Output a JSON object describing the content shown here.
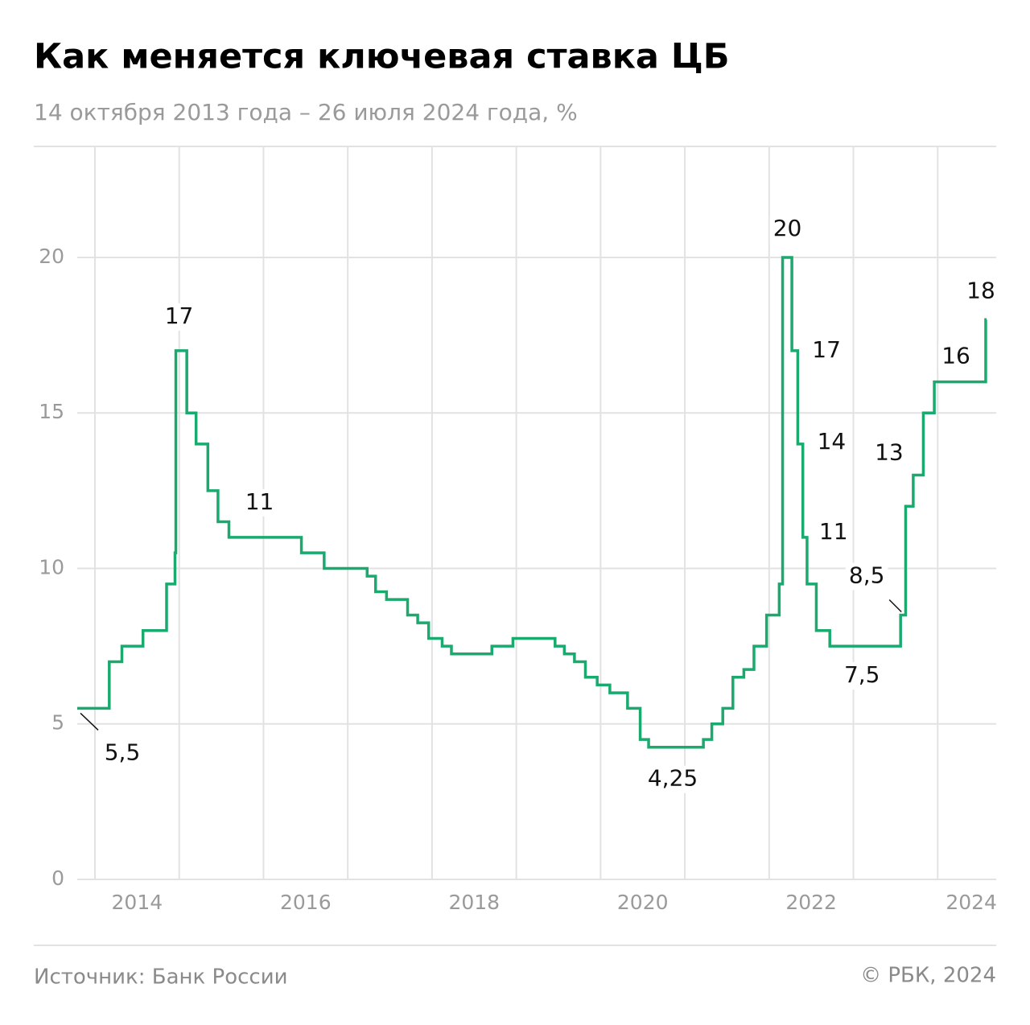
{
  "chart_data": {
    "type": "step-line",
    "title": "Как меняется ключевая ставка ЦБ",
    "subtitle": "14 октября 2013 года – 26 июля 2024 года, %",
    "source": "Источник: Банк России",
    "credit": "© РБК, 2024",
    "xlim": [
      2013.79,
      2024.58
    ],
    "ylim": [
      0,
      23.57
    ],
    "yticks": [
      0,
      5,
      10,
      15,
      20
    ],
    "xticks": [
      {
        "value": 2014.5,
        "label": "2014"
      },
      {
        "value": 2016.5,
        "label": "2016"
      },
      {
        "value": 2018.5,
        "label": "2018"
      },
      {
        "value": 2020.5,
        "label": "2020"
      },
      {
        "value": 2022.5,
        "label": "2022"
      },
      {
        "value": 2024.4,
        "label": "2024"
      }
    ],
    "xgrid": [
      2014,
      2015,
      2016,
      2017,
      2018,
      2019,
      2020,
      2021,
      2022,
      2023,
      2024
    ],
    "grid": true,
    "x": [
      2013.79,
      2014.17,
      2014.32,
      2014.57,
      2014.85,
      2014.95,
      2014.96,
      2015.09,
      2015.2,
      2015.34,
      2015.46,
      2015.59,
      2016.45,
      2016.72,
      2017.23,
      2017.33,
      2017.46,
      2017.71,
      2017.83,
      2017.96,
      2018.12,
      2018.23,
      2018.71,
      2018.96,
      2019.46,
      2019.57,
      2019.69,
      2019.82,
      2019.96,
      2020.11,
      2020.32,
      2020.47,
      2020.57,
      2021.22,
      2021.32,
      2021.45,
      2021.57,
      2021.7,
      2021.82,
      2021.97,
      2022.12,
      2022.16,
      2022.27,
      2022.34,
      2022.4,
      2022.45,
      2022.56,
      2022.72,
      2023.56,
      2023.62,
      2023.71,
      2023.83,
      2023.96,
      2024.57
    ],
    "series": [
      {
        "name": "Ключевая ставка",
        "color": "#1aaa6e",
        "values": [
          5.5,
          7,
          7.5,
          8,
          9.5,
          10.5,
          17,
          15,
          14,
          12.5,
          11.5,
          11,
          10.5,
          10,
          9.75,
          9.25,
          9,
          8.5,
          8.25,
          7.75,
          7.5,
          7.25,
          7.5,
          7.75,
          7.5,
          7.25,
          7,
          6.5,
          6.25,
          6,
          5.5,
          4.5,
          4.25,
          4.5,
          5,
          5.5,
          6.5,
          6.75,
          7.5,
          8.5,
          9.5,
          20,
          17,
          14,
          11,
          9.5,
          8,
          7.5,
          8.5,
          12,
          13,
          15,
          16,
          18
        ],
        "value_labels": [
          "5,5",
          null,
          null,
          null,
          null,
          null,
          "17",
          null,
          null,
          null,
          null,
          "11",
          null,
          null,
          null,
          null,
          null,
          null,
          null,
          null,
          null,
          null,
          null,
          null,
          null,
          null,
          null,
          null,
          null,
          null,
          null,
          null,
          "4,25",
          null,
          null,
          null,
          null,
          null,
          null,
          null,
          null,
          "20",
          "17",
          "14",
          "11",
          null,
          null,
          "7,5",
          "8,5",
          null,
          "13",
          null,
          "16",
          "18"
        ]
      }
    ]
  }
}
